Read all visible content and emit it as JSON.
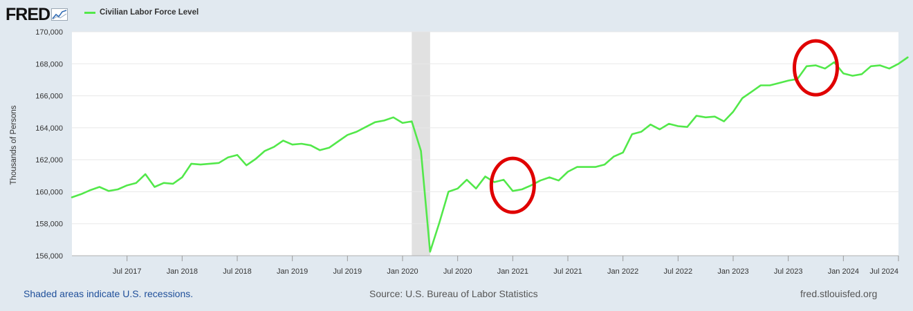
{
  "header": {
    "logo_text": "FRED",
    "logo_icon": "trend-chart-icon"
  },
  "colors": {
    "series": "#52e84a",
    "background": "#e1e9f0",
    "plot_bg": "#ffffff",
    "recession": "#e1e1e1",
    "grid": "#e8e8e8",
    "annotation": "#e00000"
  },
  "chart_data": {
    "type": "line",
    "title": "",
    "xlabel": "",
    "ylabel": "Thousands of Persons",
    "ylim": [
      156000,
      170000
    ],
    "y_ticks": [
      156000,
      158000,
      160000,
      162000,
      164000,
      166000,
      168000,
      170000
    ],
    "y_tick_labels": [
      "156,000",
      "158,000",
      "160,000",
      "162,000",
      "164,000",
      "166,000",
      "168,000",
      "170,000"
    ],
    "x_range": [
      "2017-01",
      "2024-07"
    ],
    "x_ticks": [
      "2017-07",
      "2018-01",
      "2018-07",
      "2019-01",
      "2019-07",
      "2020-01",
      "2020-07",
      "2021-01",
      "2021-07",
      "2022-01",
      "2022-07",
      "2023-01",
      "2023-07",
      "2024-01",
      "2024-07"
    ],
    "x_tick_labels": [
      "Jul 2017",
      "Jan 2018",
      "Jul 2018",
      "Jan 2019",
      "Jul 2019",
      "Jan 2020",
      "Jul 2020",
      "Jan 2021",
      "Jul 2021",
      "Jan 2022",
      "Jul 2022",
      "Jan 2023",
      "Jul 2023",
      "Jan 2024",
      "Jul 2024"
    ],
    "legend": "top-left",
    "grid": true,
    "recessions": [
      [
        "2020-02",
        "2020-04"
      ]
    ],
    "annotations": [
      {
        "shape": "ellipse",
        "color": "red",
        "center": [
          "2021-01",
          160400
        ]
      },
      {
        "shape": "ellipse",
        "color": "red",
        "center": [
          "2023-10",
          167750
        ]
      }
    ],
    "series": [
      {
        "name": "Civilian Labor Force Level",
        "values": [
          [
            "2017-01",
            159650
          ],
          [
            "2017-02",
            159850
          ],
          [
            "2017-03",
            160100
          ],
          [
            "2017-04",
            160300
          ],
          [
            "2017-05",
            160050
          ],
          [
            "2017-06",
            160150
          ],
          [
            "2017-07",
            160400
          ],
          [
            "2017-08",
            160550
          ],
          [
            "2017-09",
            161100
          ],
          [
            "2017-10",
            160300
          ],
          [
            "2017-11",
            160550
          ],
          [
            "2017-12",
            160500
          ],
          [
            "2018-01",
            160900
          ],
          [
            "2018-02",
            161750
          ],
          [
            "2018-03",
            161700
          ],
          [
            "2018-04",
            161750
          ],
          [
            "2018-05",
            161800
          ],
          [
            "2018-06",
            162150
          ],
          [
            "2018-07",
            162300
          ],
          [
            "2018-08",
            161650
          ],
          [
            "2018-09",
            162050
          ],
          [
            "2018-10",
            162550
          ],
          [
            "2018-11",
            162800
          ],
          [
            "2018-12",
            163200
          ],
          [
            "2019-01",
            162950
          ],
          [
            "2019-02",
            163000
          ],
          [
            "2019-03",
            162900
          ],
          [
            "2019-04",
            162600
          ],
          [
            "2019-05",
            162750
          ],
          [
            "2019-06",
            163150
          ],
          [
            "2019-07",
            163550
          ],
          [
            "2019-08",
            163750
          ],
          [
            "2019-09",
            164050
          ],
          [
            "2019-10",
            164350
          ],
          [
            "2019-11",
            164450
          ],
          [
            "2019-12",
            164650
          ],
          [
            "2020-01",
            164300
          ],
          [
            "2020-02",
            164400
          ],
          [
            "2020-03",
            162550
          ],
          [
            "2020-04",
            156250
          ],
          [
            "2020-05",
            158050
          ],
          [
            "2020-06",
            160000
          ],
          [
            "2020-07",
            160200
          ],
          [
            "2020-08",
            160750
          ],
          [
            "2020-09",
            160200
          ],
          [
            "2020-10",
            160950
          ],
          [
            "2020-11",
            160600
          ],
          [
            "2020-12",
            160750
          ],
          [
            "2021-01",
            160050
          ],
          [
            "2021-02",
            160150
          ],
          [
            "2021-03",
            160400
          ],
          [
            "2021-04",
            160700
          ],
          [
            "2021-05",
            160900
          ],
          [
            "2021-06",
            160700
          ],
          [
            "2021-07",
            161250
          ],
          [
            "2021-08",
            161550
          ],
          [
            "2021-09",
            161550
          ],
          [
            "2021-10",
            161550
          ],
          [
            "2021-11",
            161700
          ],
          [
            "2021-12",
            162200
          ],
          [
            "2022-01",
            162450
          ],
          [
            "2022-02",
            163600
          ],
          [
            "2022-03",
            163750
          ],
          [
            "2022-04",
            164200
          ],
          [
            "2022-05",
            163900
          ],
          [
            "2022-06",
            164250
          ],
          [
            "2022-07",
            164100
          ],
          [
            "2022-08",
            164050
          ],
          [
            "2022-09",
            164750
          ],
          [
            "2022-10",
            164650
          ],
          [
            "2022-11",
            164700
          ],
          [
            "2022-12",
            164400
          ],
          [
            "2023-01",
            165000
          ],
          [
            "2023-02",
            165850
          ],
          [
            "2023-03",
            166250
          ],
          [
            "2023-04",
            166650
          ],
          [
            "2023-05",
            166650
          ],
          [
            "2023-06",
            166800
          ],
          [
            "2023-07",
            166950
          ],
          [
            "2023-08",
            167050
          ],
          [
            "2023-09",
            167850
          ],
          [
            "2023-10",
            167900
          ],
          [
            "2023-11",
            167700
          ],
          [
            "2023-12",
            168100
          ],
          [
            "2024-01",
            167400
          ],
          [
            "2024-02",
            167250
          ],
          [
            "2024-03",
            167350
          ],
          [
            "2024-04",
            167850
          ],
          [
            "2024-05",
            167900
          ],
          [
            "2024-06",
            167700
          ],
          [
            "2024-07",
            168000
          ],
          [
            "2024-08",
            168400
          ]
        ]
      }
    ]
  },
  "footer": {
    "recession_note": "Shaded areas indicate U.S. recessions.",
    "source": "Source: U.S. Bureau of Labor Statistics",
    "site": "fred.stlouisfed.org"
  }
}
